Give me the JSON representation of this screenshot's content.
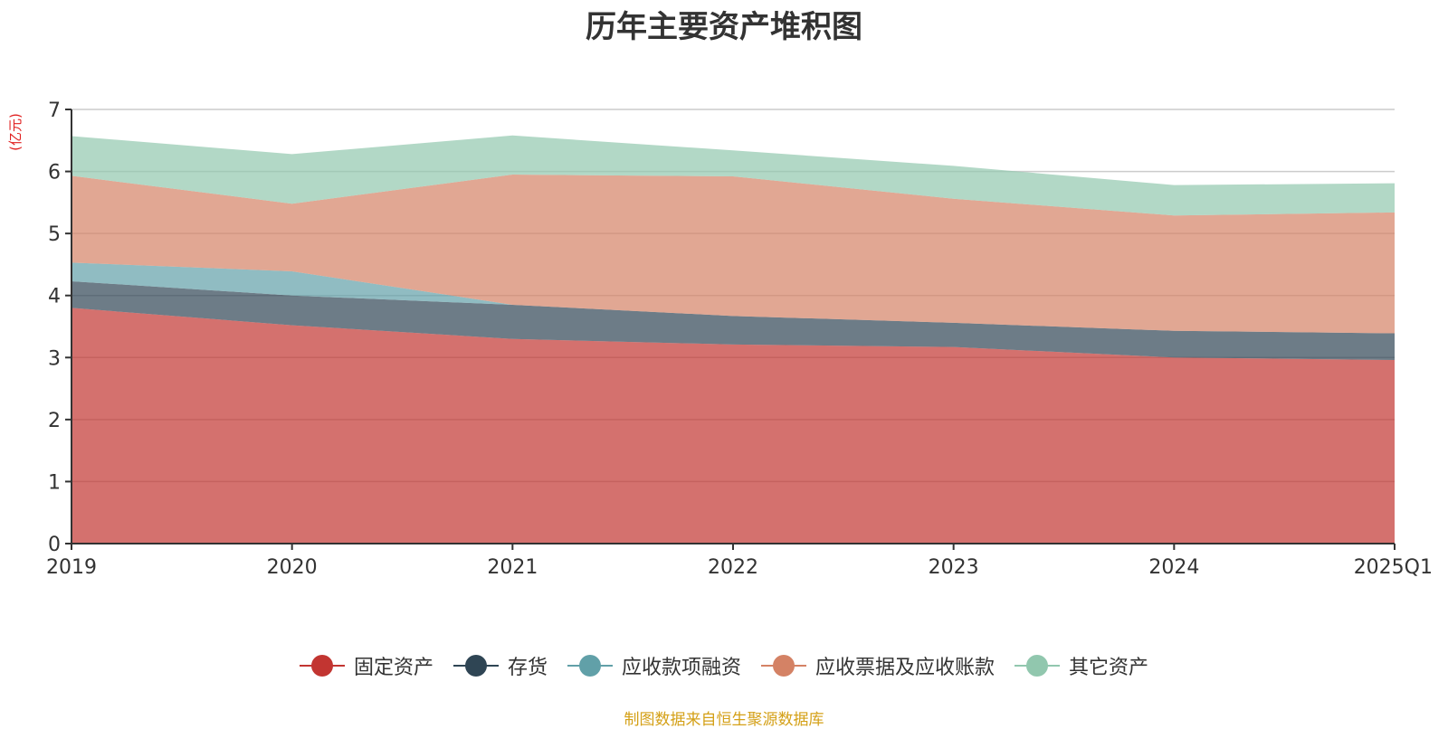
{
  "chart_data": {
    "type": "area",
    "stacked": true,
    "title": "历年主要资产堆积图",
    "unit_label": "(亿元)",
    "categories": [
      "2019",
      "2020",
      "2021",
      "2022",
      "2023",
      "2024",
      "2025Q1"
    ],
    "ylim": [
      0,
      7
    ],
    "yticks": [
      0,
      1,
      2,
      3,
      4,
      5,
      6,
      7
    ],
    "grid": true,
    "legend_position": "bottom",
    "series": [
      {
        "name": "固定资产",
        "color": "#c23531",
        "values": [
          3.8,
          3.52,
          3.3,
          3.21,
          3.17,
          3.0,
          2.96
        ]
      },
      {
        "name": "存货",
        "color": "#2f4554",
        "values": [
          0.43,
          0.48,
          0.55,
          0.46,
          0.39,
          0.43,
          0.43
        ]
      },
      {
        "name": "应收款项融资",
        "color": "#61a0a8",
        "values": [
          0.3,
          0.39,
          0.0,
          0.0,
          0.0,
          0.0,
          0.0
        ]
      },
      {
        "name": "应收票据及应收账款",
        "color": "#d48265",
        "values": [
          1.4,
          1.09,
          2.1,
          2.25,
          2.0,
          1.86,
          1.95
        ]
      },
      {
        "name": "其它资产",
        "color": "#91c7ae",
        "values": [
          0.64,
          0.8,
          0.63,
          0.42,
          0.53,
          0.49,
          0.47
        ]
      }
    ]
  },
  "footer": {
    "source": "制图数据来自恒生聚源数据库"
  }
}
